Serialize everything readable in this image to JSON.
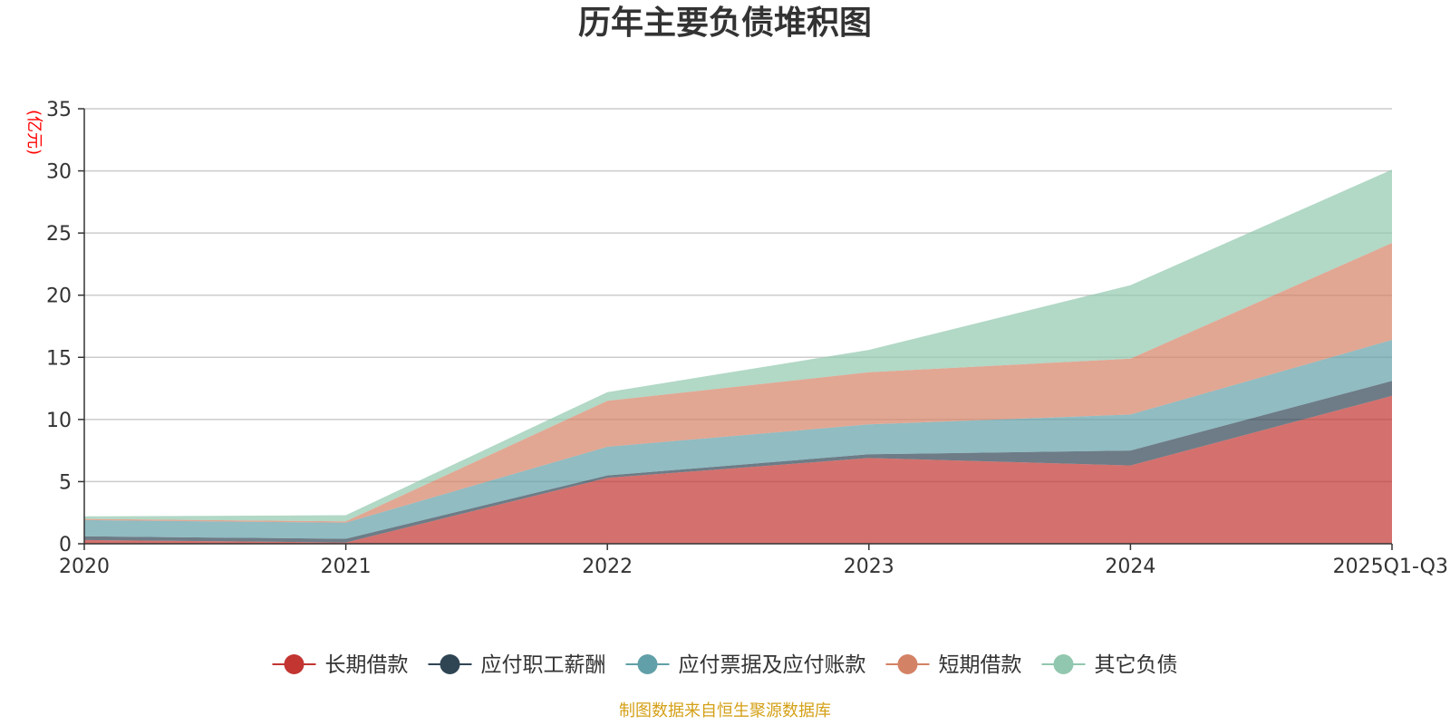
{
  "chart_data": {
    "type": "area",
    "stacked": true,
    "title": "历年主要负债堆积图",
    "ylabel": "(亿元)",
    "xlabel": "",
    "categories": [
      "2020",
      "2021",
      "2022",
      "2023",
      "2024",
      "2025Q1-Q3"
    ],
    "ylim": [
      0,
      35
    ],
    "yticks": [
      0,
      5,
      10,
      15,
      20,
      25,
      30,
      35
    ],
    "grid": true,
    "legend_position": "bottom",
    "series": [
      {
        "name": "长期借款",
        "color": "#c23531",
        "values": [
          0.3,
          0.1,
          5.3,
          6.9,
          6.3,
          11.9
        ]
      },
      {
        "name": "应付职工薪酬",
        "color": "#2f4554",
        "values": [
          0.3,
          0.3,
          0.2,
          0.3,
          1.2,
          1.2
        ]
      },
      {
        "name": "应付票据及应付账款",
        "color": "#61a0a8",
        "values": [
          1.3,
          1.3,
          2.3,
          2.4,
          2.9,
          3.3
        ]
      },
      {
        "name": "短期借款",
        "color": "#d48265",
        "values": [
          0.1,
          0.1,
          3.7,
          4.2,
          4.5,
          7.8
        ]
      },
      {
        "name": "其它负债",
        "color": "#91c7ae",
        "values": [
          0.2,
          0.5,
          0.7,
          1.8,
          5.9,
          5.9
        ]
      }
    ],
    "source_note": "制图数据来自恒生聚源数据库",
    "colors": {
      "title": "#333333",
      "ylabel": "#ff0000",
      "source_note": "#d4a017",
      "grid": "#cccccc",
      "axis": "#333333"
    }
  }
}
